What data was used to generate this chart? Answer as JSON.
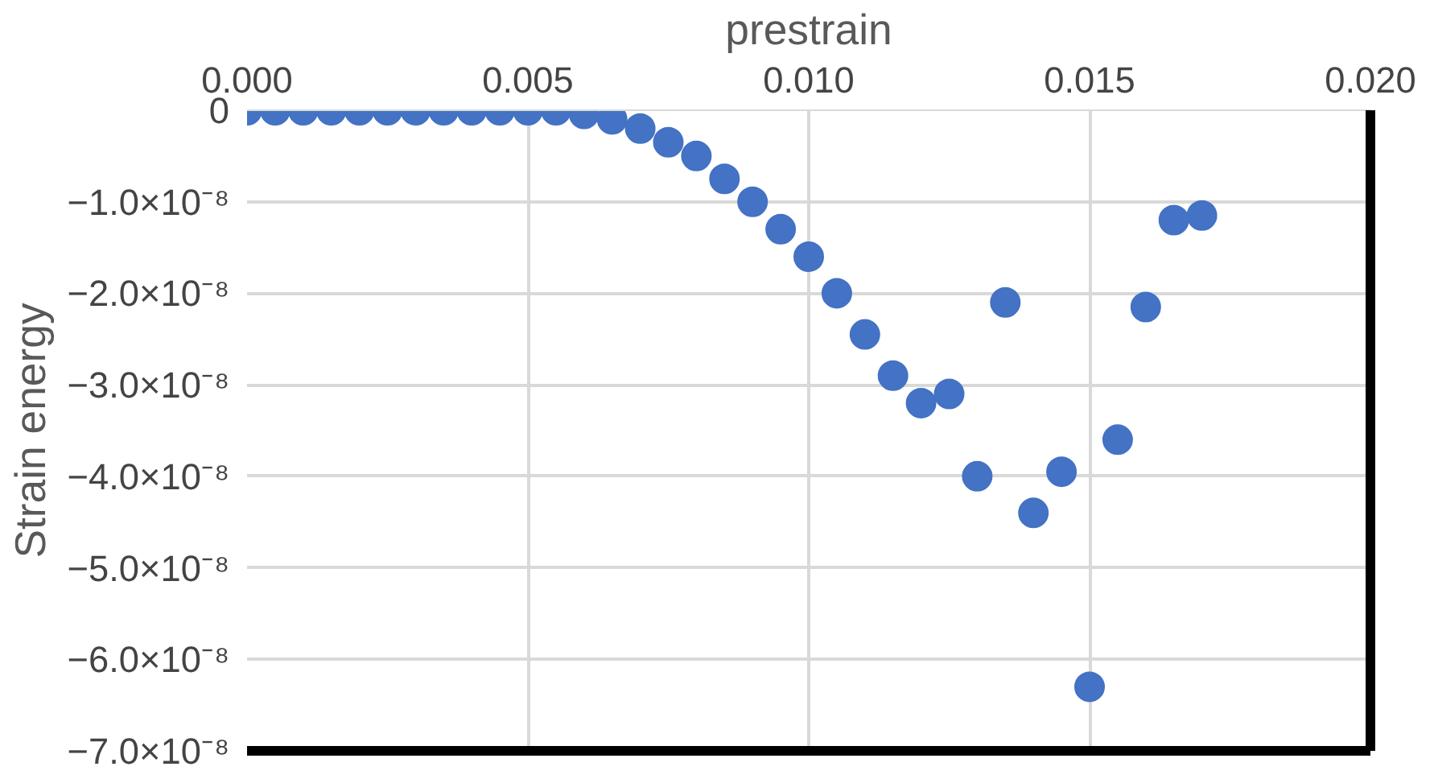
{
  "chart_data": {
    "type": "scatter",
    "xlabel": "prestrain",
    "ylabel": "Strain energy",
    "x": [
      0,
      0.0005,
      0.001,
      0.0015,
      0.002,
      0.0025,
      0.003,
      0.0035,
      0.004,
      0.0045,
      0.005,
      0.0055,
      0.006,
      0.0065,
      0.007,
      0.0075,
      0.008,
      0.0085,
      0.009,
      0.0095,
      0.01,
      0.0105,
      0.011,
      0.0115,
      0.012,
      0.0125,
      0.013,
      0.0135,
      0.014,
      0.0145,
      0.015,
      0.0155,
      0.016,
      0.0165,
      0.017
    ],
    "series": [
      {
        "color": "#4472c4",
        "values": [
          0,
          0,
          0,
          0,
          0,
          0,
          0,
          0,
          0,
          0,
          0,
          0,
          -4e-10,
          -1e-09,
          -2e-09,
          -3.5e-09,
          -5e-09,
          -7.5e-09,
          -1e-08,
          -1.3e-08,
          -1.6e-08,
          -2e-08,
          -2.45e-08,
          -2.9e-08,
          -3.2e-08,
          -3.1e-08,
          -4e-08,
          -2.1e-08,
          -4.4e-08,
          -3.95e-08,
          -6.3e-08,
          -3.6e-08,
          -2.15e-08,
          -1.2e-08,
          -1.15e-08
        ]
      }
    ],
    "xlim": [
      0,
      0.02
    ],
    "xticks": [
      {
        "value": 0,
        "label": "0.000"
      },
      {
        "value": 0.005,
        "label": "0.005"
      },
      {
        "value": 0.01,
        "label": "0.010"
      },
      {
        "value": 0.015,
        "label": "0.015"
      },
      {
        "value": 0.02,
        "label": "0.020"
      }
    ],
    "ylim": [
      -7e-08,
      0
    ],
    "yticks": [
      0,
      {
        "value": -1e-08,
        "label": "−1.0×10⁻⁸"
      },
      {
        "value": -2e-08,
        "label": "−2.0×10⁻⁸"
      },
      {
        "value": -3e-08,
        "label": "−3.0×10⁻⁸"
      },
      {
        "value": -4e-08,
        "label": "−4.0×10⁻⁸"
      },
      {
        "value": -5e-08,
        "label": "−5.0×10⁻⁸"
      },
      {
        "value": -6e-08,
        "label": "−6.0×10⁻⁸"
      },
      {
        "value": -7e-08,
        "label": "−7.0×10⁻⁸"
      }
    ],
    "grid": true,
    "marker": "circle"
  }
}
